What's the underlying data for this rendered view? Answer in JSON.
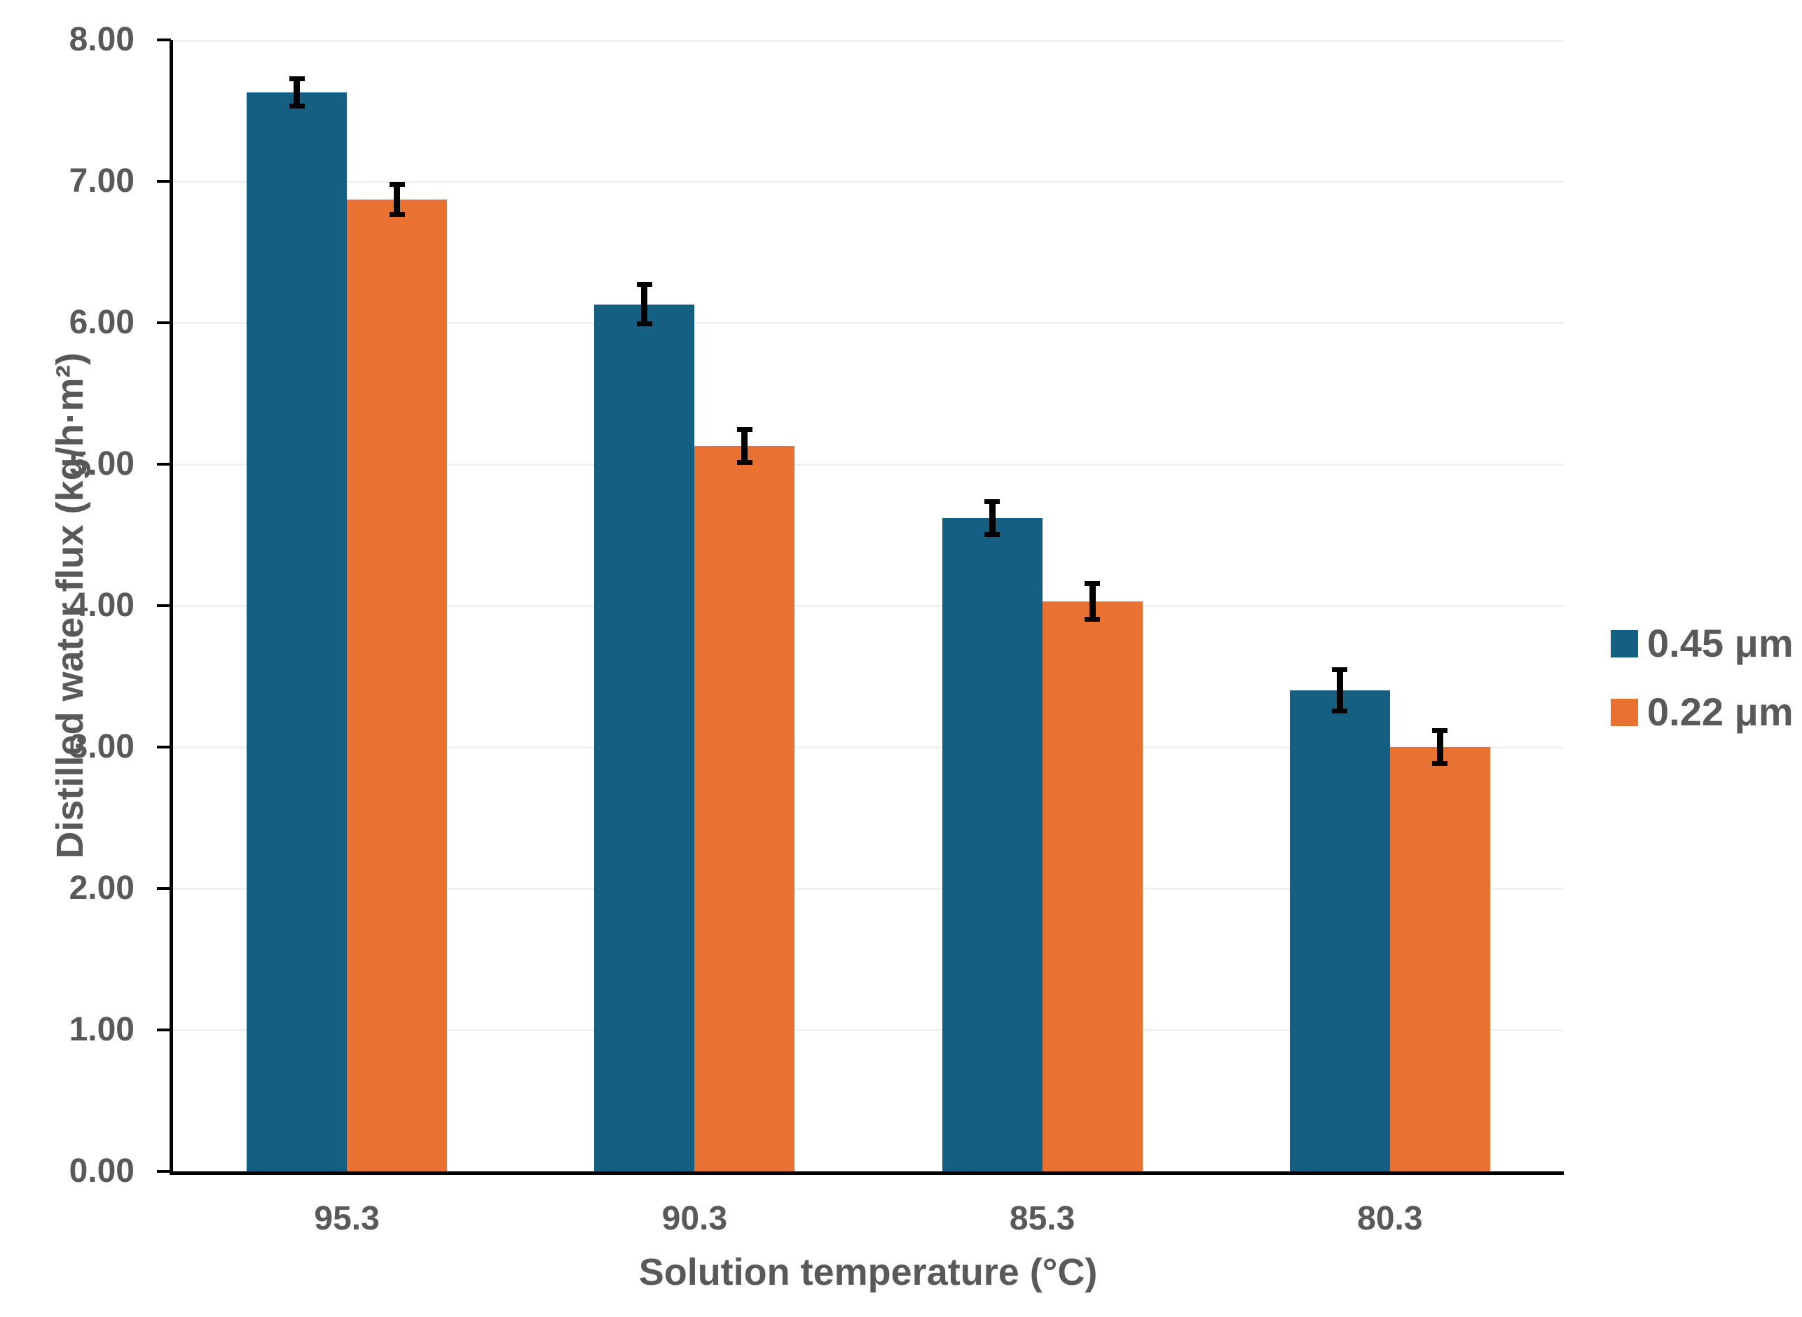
{
  "chart_data": {
    "type": "bar",
    "title": "",
    "categories": [
      "95.3",
      "90.3",
      "85.3",
      "80.3"
    ],
    "series": [
      {
        "name": "0.45 μm",
        "color": "#156082",
        "values": [
          7.63,
          6.13,
          4.62,
          3.4
        ],
        "errors": [
          0.09,
          0.13,
          0.11,
          0.14
        ]
      },
      {
        "name": "0.22 μm",
        "color": "#E97132",
        "values": [
          6.87,
          5.13,
          4.03,
          3.0
        ],
        "errors": [
          0.1,
          0.11,
          0.12,
          0.11
        ]
      }
    ],
    "xlabel": "Solution temperature (°C)",
    "ylabel": "Distilled water flux (kg/h·m²)",
    "ylim": [
      0,
      8
    ],
    "ytick_step": 1,
    "ytick_labels": [
      "8.00",
      "7.00",
      "6.00",
      "5.00",
      "4.00",
      "3.00",
      "2.00",
      "1.00",
      "0.00"
    ],
    "grid": "horizontal",
    "legend_position": "right",
    "error_bars": "plus-minus, black caps",
    "colors": {
      "axis": "#000000",
      "gridline": "#F0F0F0",
      "text": "#595959",
      "background": "#FFFFFF"
    }
  }
}
